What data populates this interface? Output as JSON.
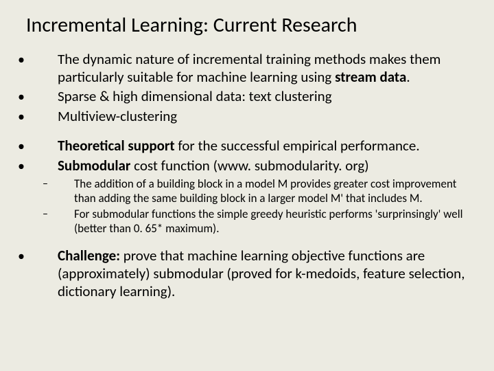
{
  "background_color": "#ecebe2",
  "text_color": "#000000",
  "font_family": "Calibri",
  "title": "Incremental Learning: Current Research",
  "title_fontsize": 30,
  "body_fontsize": 21,
  "sub_fontsize": 17,
  "bullets": {
    "b1_pre": "The dynamic nature of incremental training methods makes them particularly suitable for machine learning using ",
    "b1_bold": "stream data",
    "b1_post": ".",
    "b2": "Sparse & high dimensional data: text clustering",
    "b3": "Multiview-clustering",
    "b4_bold": "Theoretical support",
    "b4_post": " for the successful empirical performance.",
    "b5_bold": "Submodular",
    "b5_post": " cost function (www. submodularity. org)",
    "s1": "The addition of a building block in a model M provides greater cost improvement than adding the same building block in a larger model M' that includes M.",
    "s2": "For submodular functions the simple greedy heuristic performs 'surprinsingly' well (better than 0. 65* maximum).",
    "b6_bold": "Challenge:",
    "b6_post": " prove that machine learning objective functions are (approximately) submodular (proved for k-medoids,  feature selection, dictionary learning)."
  },
  "glyphs": {
    "bullet": "•",
    "dash": "–"
  }
}
